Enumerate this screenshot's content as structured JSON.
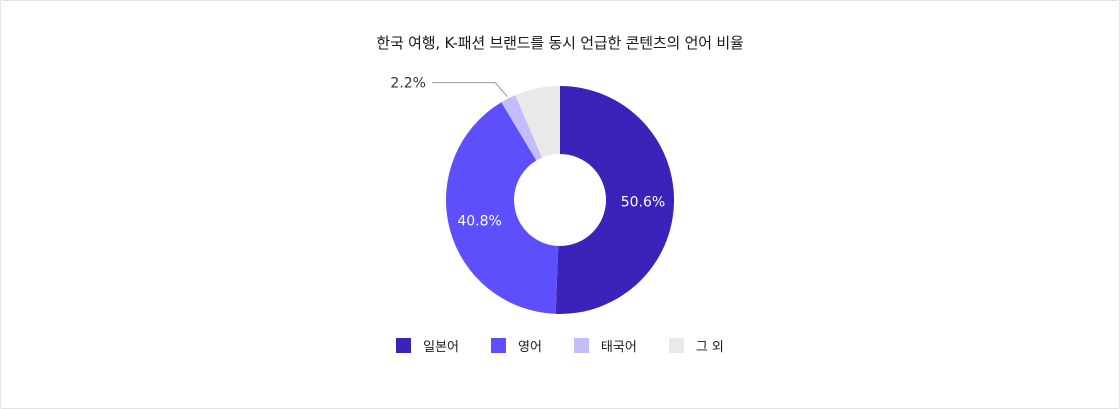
{
  "chart_data": {
    "type": "pie",
    "title": "한국 여행, K-패션 브랜드를 동시 언급한 콘텐츠의 언어 비율",
    "categories": [
      "일본어",
      "영어",
      "태국어",
      "그 외"
    ],
    "values": [
      50.6,
      40.8,
      2.2,
      6.4
    ],
    "labels": [
      "50.6%",
      "40.8%",
      "2.2%",
      ""
    ],
    "colors": [
      "#3b22b8",
      "#5d4ffb",
      "#c4bdfb",
      "#e9e9e9"
    ],
    "donut": true,
    "legend_position": "bottom"
  }
}
